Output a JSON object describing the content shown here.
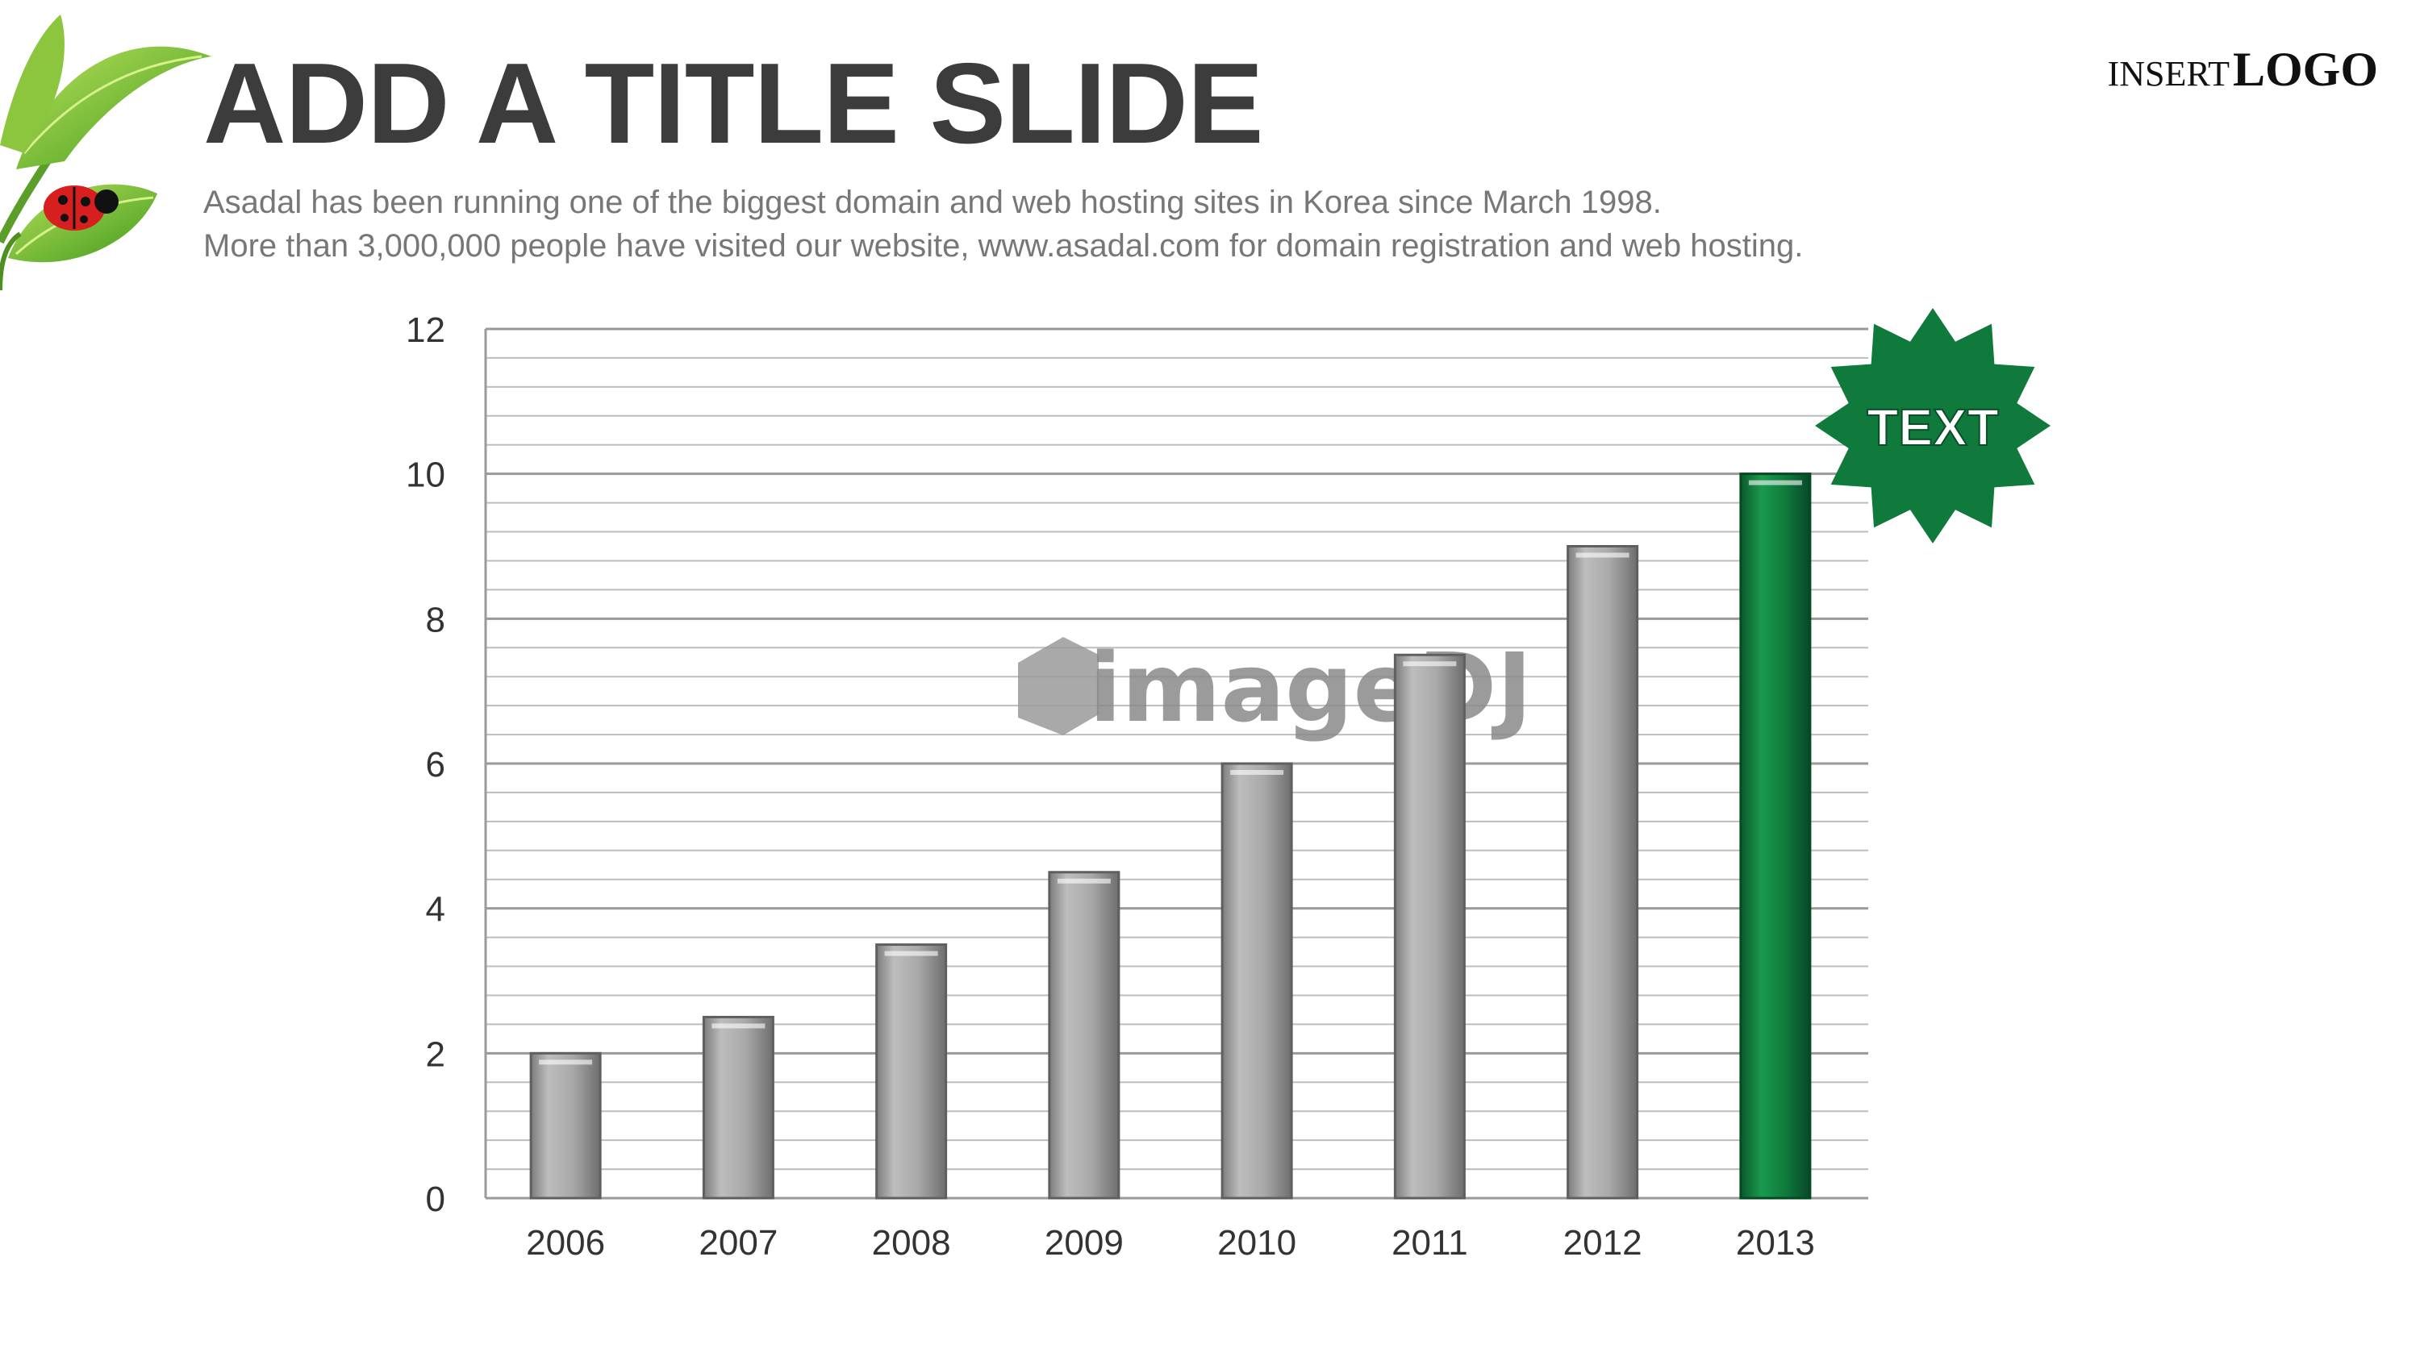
{
  "slide": {
    "title": "ADD A TITLE SLIDE",
    "subtitle_lines": [
      "Asadal has been running one of the biggest domain and web hosting sites in Korea since March 1998.",
      "More than 3,000,000 people have visited our website,  www.asadal.com for domain registration and web hosting."
    ],
    "logo": {
      "prefix": "INSERT",
      "word": "LOGO"
    },
    "badge": {
      "text": "TEXT",
      "color": "#0f7a3c"
    },
    "watermark": "imageDJ",
    "decoration_icon": "leaf-with-ladybug-icon"
  },
  "colors": {
    "bar_default": "#a9a9a9",
    "bar_highlight": "#0f7a3c",
    "title": "#3c3c3c",
    "subtitle": "#777777"
  },
  "chart_data": {
    "type": "bar",
    "categories": [
      "2006",
      "2007",
      "2008",
      "2009",
      "2010",
      "2011",
      "2012",
      "2013"
    ],
    "values": [
      2,
      2.5,
      3.5,
      4.5,
      6,
      7.5,
      9,
      10
    ],
    "highlight_category": "2013",
    "title": "",
    "xlabel": "",
    "ylabel": "",
    "ylim": [
      0,
      12
    ],
    "yticks": [
      0,
      2,
      4,
      6,
      8,
      10,
      12
    ],
    "minor_grid_step": 0.4,
    "grid": true,
    "legend": "none"
  }
}
